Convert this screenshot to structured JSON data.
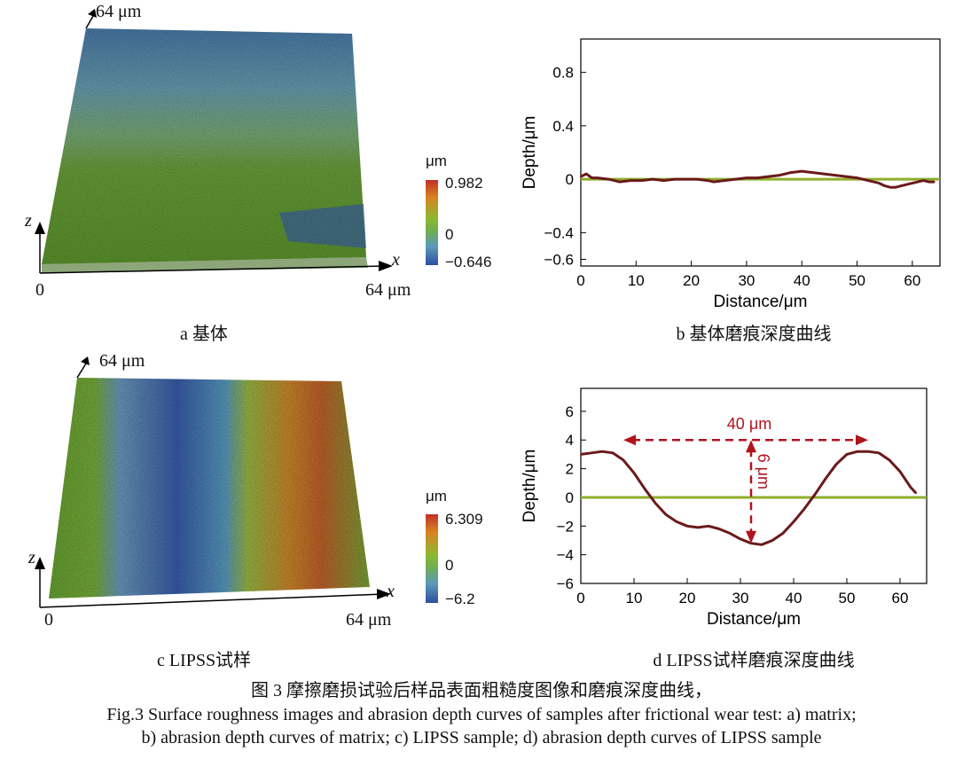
{
  "panels": {
    "a": {
      "top_label": "64 μm",
      "z": "z",
      "x": "x",
      "origin": "0",
      "right_label": "64 μm",
      "unit": "μm",
      "cbar_max": "0.982",
      "cbar_zero": "0",
      "cbar_min": "−0.646",
      "caption": "a  基体"
    },
    "b": {
      "caption": "b  基体磨痕深度曲线"
    },
    "c": {
      "top_label": "64 μm",
      "z": "z",
      "x": "x",
      "origin": "0",
      "right_label": "64 μm",
      "unit": "μm",
      "cbar_max": "6.309",
      "cbar_zero": "0",
      "cbar_min": "−6.2",
      "caption": "c  LIPSS试样"
    },
    "d": {
      "caption": "d  LIPSS试样磨痕深度曲线",
      "ann_width": "40 μm",
      "ann_depth": "6 μm"
    }
  },
  "figure_caption_cn": "图 3    摩擦磨损试验后样品表面粗糙度图像和磨痕深度曲线，",
  "figure_caption_en_1": "Fig.3 Surface roughness images and abrasion depth curves of samples after frictional wear test: a) matrix;",
  "figure_caption_en_2": "b) abrasion depth curves of matrix; c) LIPSS sample; d) abrasion depth curves of LIPSS sample",
  "colors": {
    "curve": "#6b1a1a",
    "baseline": "#8fae2a",
    "annot": "#b0141e"
  },
  "chart_data": [
    {
      "type": "line",
      "xlabel": "Distance/μm",
      "ylabel": "Depth/μm",
      "xlim": [
        0,
        65
      ],
      "ylim": [
        -0.65,
        1.05
      ],
      "xticks": [
        0,
        10,
        20,
        30,
        40,
        50,
        60
      ],
      "yticks": [
        0.8,
        0.4,
        0,
        -0.4,
        -0.6
      ],
      "ytick_labels": [
        "0.8",
        "0.4",
        "0",
        "−0.4",
        "−0.6"
      ],
      "baseline_y": 0,
      "x": [
        0,
        1,
        2,
        3,
        5,
        7,
        9,
        11,
        13,
        15,
        17,
        19,
        21,
        23,
        24,
        26,
        28,
        30,
        32,
        34,
        36,
        38,
        40,
        42,
        44,
        46,
        48,
        50,
        52,
        54,
        55,
        56,
        57,
        58,
        59,
        60,
        61,
        62,
        63,
        64
      ],
      "y": [
        0.02,
        0.04,
        0.01,
        0.01,
        0.0,
        -0.02,
        -0.01,
        -0.01,
        0.0,
        -0.01,
        0.0,
        0.0,
        0.0,
        -0.01,
        -0.02,
        -0.01,
        0.0,
        0.01,
        0.01,
        0.02,
        0.03,
        0.05,
        0.06,
        0.05,
        0.04,
        0.03,
        0.02,
        0.01,
        -0.01,
        -0.03,
        -0.05,
        -0.06,
        -0.06,
        -0.05,
        -0.04,
        -0.03,
        -0.02,
        -0.01,
        -0.02,
        -0.02
      ]
    },
    {
      "type": "line",
      "xlabel": "Distance/μm",
      "ylabel": "Depth/μm",
      "xlim": [
        0,
        65
      ],
      "ylim": [
        -6,
        7.6
      ],
      "xticks": [
        0,
        10,
        20,
        30,
        40,
        50,
        60
      ],
      "yticks": [
        6,
        4,
        2,
        0,
        -2,
        -4,
        -6
      ],
      "ytick_labels": [
        "6",
        "4",
        "2",
        "0",
        "−2",
        "−4",
        "−6"
      ],
      "baseline_y": 0,
      "x": [
        0,
        2,
        4,
        6,
        8,
        10,
        12,
        14,
        16,
        18,
        20,
        22,
        24,
        26,
        28,
        30,
        32,
        34,
        36,
        38,
        40,
        42,
        44,
        46,
        48,
        50,
        52,
        54,
        56,
        58,
        60,
        62,
        63
      ],
      "y": [
        3.0,
        3.1,
        3.2,
        3.1,
        2.6,
        1.7,
        0.6,
        -0.4,
        -1.2,
        -1.7,
        -2.0,
        -2.1,
        -2.0,
        -2.2,
        -2.5,
        -2.9,
        -3.2,
        -3.3,
        -3.0,
        -2.5,
        -1.7,
        -0.8,
        0.2,
        1.3,
        2.3,
        3.0,
        3.2,
        3.2,
        3.1,
        2.6,
        1.8,
        0.7,
        0.3
      ]
    }
  ]
}
